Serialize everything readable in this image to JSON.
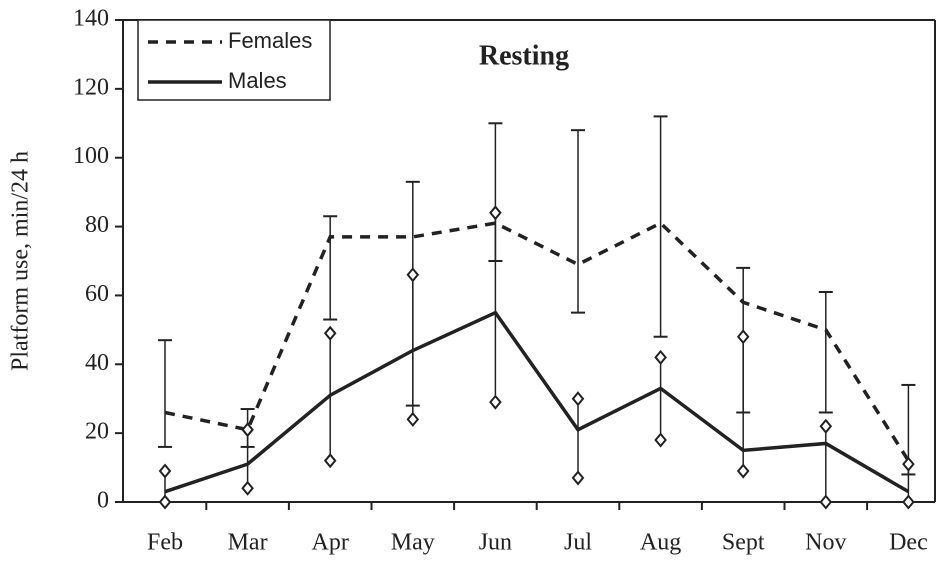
{
  "chart_data": {
    "type": "line",
    "title": "Resting",
    "y_label": "Platform use, min/24 h",
    "categories": [
      "Feb",
      "Mar",
      "Apr",
      "May",
      "Jun",
      "Jul",
      "Aug",
      "Sept",
      "Nov",
      "Dec"
    ],
    "series": [
      {
        "name": "Females",
        "color": "#222222",
        "linestyle": "dashed",
        "error_marker": "cap",
        "values": [
          26,
          21,
          77,
          77,
          81,
          69,
          81,
          58,
          50,
          12
        ],
        "lower": [
          16,
          16,
          53,
          28,
          70,
          55,
          48,
          26,
          26,
          8
        ],
        "upper": [
          47,
          27,
          83,
          93,
          110,
          108,
          112,
          68,
          61,
          34
        ]
      },
      {
        "name": "Males",
        "color": "#222222",
        "linestyle": "solid",
        "error_marker": "diamond",
        "values": [
          3,
          11,
          31,
          44,
          55,
          21,
          33,
          15,
          17,
          3
        ],
        "lower": [
          0,
          4,
          12,
          24,
          29,
          7,
          18,
          9,
          0,
          0
        ],
        "upper": [
          9,
          21,
          49,
          66,
          84,
          30,
          42,
          48,
          22,
          11
        ]
      }
    ],
    "ylim": [
      0,
      140
    ],
    "yticks": [
      0,
      20,
      40,
      60,
      80,
      100,
      120,
      140
    ],
    "grid": false,
    "legend": "upper left"
  }
}
